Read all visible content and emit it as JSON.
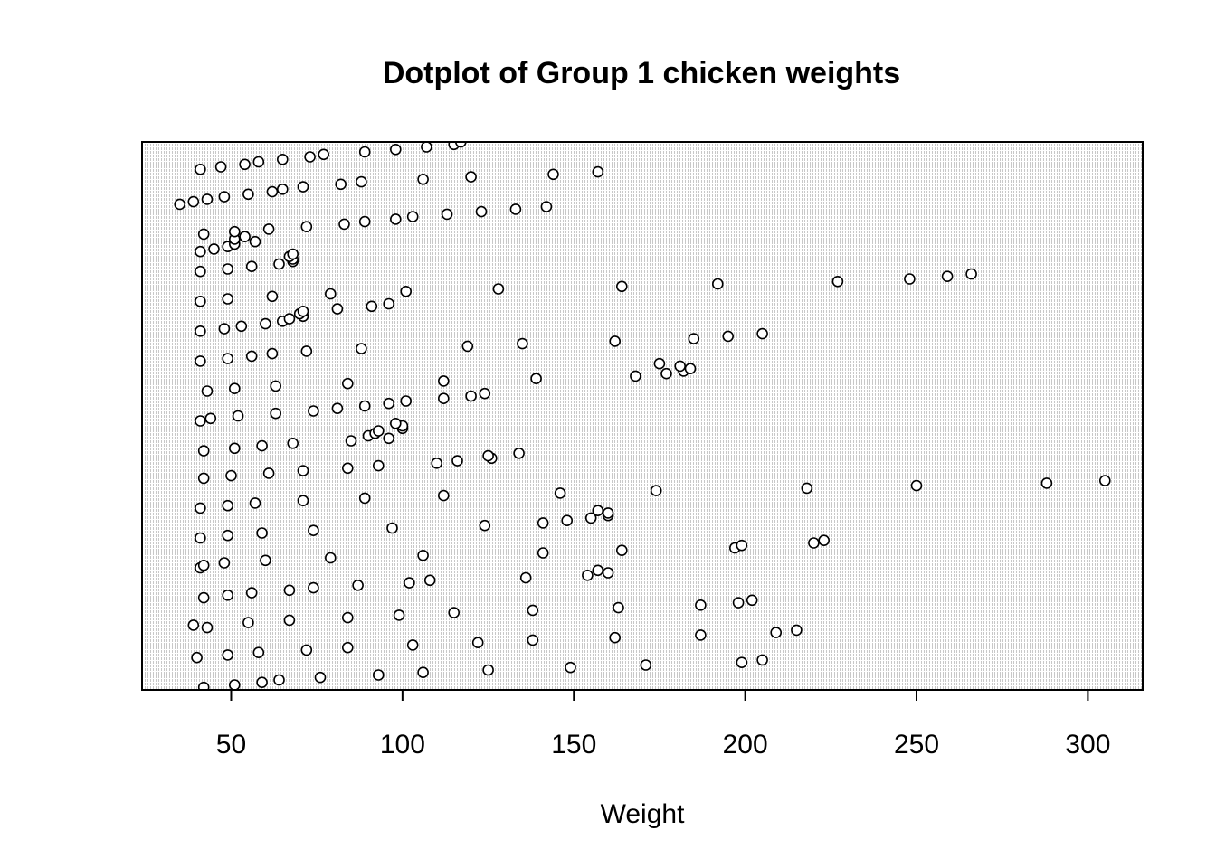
{
  "chart_data": {
    "type": "scatter",
    "title": "Dotplot of Group 1 chicken weights",
    "xlabel": "Weight",
    "ylabel": "",
    "xlim": [
      24,
      316
    ],
    "ylim": [
      0,
      220
    ],
    "x_ticks": [
      50,
      100,
      150,
      200,
      250,
      300
    ],
    "x_tick_labels": [
      "50",
      "100",
      "150",
      "200",
      "250",
      "300"
    ],
    "grid": false,
    "legend": "none",
    "colors": {
      "point_stroke": "#000000",
      "point_fill": "#ffffff",
      "panel_stripe": "#c8c8c8",
      "axis": "#000000"
    },
    "points": [
      [
        42,
        1
      ],
      [
        51,
        2
      ],
      [
        59,
        3
      ],
      [
        64,
        4
      ],
      [
        76,
        5
      ],
      [
        93,
        6
      ],
      [
        106,
        7
      ],
      [
        125,
        8
      ],
      [
        149,
        9
      ],
      [
        171,
        10
      ],
      [
        199,
        11
      ],
      [
        205,
        12
      ],
      [
        40,
        13
      ],
      [
        49,
        14
      ],
      [
        58,
        15
      ],
      [
        72,
        16
      ],
      [
        84,
        17
      ],
      [
        103,
        18
      ],
      [
        122,
        19
      ],
      [
        138,
        20
      ],
      [
        162,
        21
      ],
      [
        187,
        22
      ],
      [
        209,
        23
      ],
      [
        215,
        24
      ],
      [
        43,
        25
      ],
      [
        39,
        26
      ],
      [
        55,
        27
      ],
      [
        67,
        28
      ],
      [
        84,
        29
      ],
      [
        99,
        30
      ],
      [
        115,
        31
      ],
      [
        138,
        32
      ],
      [
        163,
        33
      ],
      [
        187,
        34
      ],
      [
        198,
        35
      ],
      [
        202,
        36
      ],
      [
        42,
        37
      ],
      [
        49,
        38
      ],
      [
        56,
        39
      ],
      [
        67,
        40
      ],
      [
        74,
        41
      ],
      [
        87,
        42
      ],
      [
        102,
        43
      ],
      [
        108,
        44
      ],
      [
        136,
        45
      ],
      [
        154,
        46
      ],
      [
        160,
        47
      ],
      [
        157,
        48
      ],
      [
        41,
        49
      ],
      [
        42,
        50
      ],
      [
        48,
        51
      ],
      [
        60,
        52
      ],
      [
        79,
        53
      ],
      [
        106,
        54
      ],
      [
        141,
        55
      ],
      [
        164,
        56
      ],
      [
        197,
        57
      ],
      [
        199,
        58
      ],
      [
        220,
        59
      ],
      [
        223,
        60
      ],
      [
        41,
        61
      ],
      [
        49,
        62
      ],
      [
        59,
        63
      ],
      [
        74,
        64
      ],
      [
        97,
        65
      ],
      [
        124,
        66
      ],
      [
        141,
        67
      ],
      [
        148,
        68
      ],
      [
        155,
        69
      ],
      [
        160,
        70
      ],
      [
        160,
        71
      ],
      [
        157,
        72
      ],
      [
        41,
        73
      ],
      [
        49,
        74
      ],
      [
        57,
        75
      ],
      [
        71,
        76
      ],
      [
        89,
        77
      ],
      [
        112,
        78
      ],
      [
        146,
        79
      ],
      [
        174,
        80
      ],
      [
        218,
        81
      ],
      [
        250,
        82
      ],
      [
        288,
        83
      ],
      [
        305,
        84
      ],
      [
        42,
        85
      ],
      [
        50,
        86
      ],
      [
        61,
        87
      ],
      [
        71,
        88
      ],
      [
        84,
        89
      ],
      [
        93,
        90
      ],
      [
        110,
        91
      ],
      [
        116,
        92
      ],
      [
        126,
        93
      ],
      [
        125,
        94
      ],
      [
        134,
        95
      ],
      [
        42,
        96
      ],
      [
        51,
        97
      ],
      [
        59,
        98
      ],
      [
        68,
        99
      ],
      [
        85,
        100
      ],
      [
        96,
        101
      ],
      [
        90,
        102
      ],
      [
        92,
        103
      ],
      [
        93,
        104
      ],
      [
        100,
        105
      ],
      [
        100,
        106
      ],
      [
        98,
        107
      ],
      [
        41,
        108
      ],
      [
        44,
        109
      ],
      [
        52,
        110
      ],
      [
        63,
        111
      ],
      [
        74,
        112
      ],
      [
        81,
        113
      ],
      [
        89,
        114
      ],
      [
        96,
        115
      ],
      [
        101,
        116
      ],
      [
        112,
        117
      ],
      [
        120,
        118
      ],
      [
        124,
        119
      ],
      [
        43,
        120
      ],
      [
        51,
        121
      ],
      [
        63,
        122
      ],
      [
        84,
        123
      ],
      [
        112,
        124
      ],
      [
        139,
        125
      ],
      [
        168,
        126
      ],
      [
        177,
        127
      ],
      [
        182,
        128
      ],
      [
        184,
        129
      ],
      [
        181,
        130
      ],
      [
        175,
        131
      ],
      [
        41,
        132
      ],
      [
        49,
        133
      ],
      [
        56,
        134
      ],
      [
        62,
        135
      ],
      [
        72,
        136
      ],
      [
        88,
        137
      ],
      [
        119,
        138
      ],
      [
        135,
        139
      ],
      [
        162,
        140
      ],
      [
        185,
        141
      ],
      [
        195,
        142
      ],
      [
        205,
        143
      ],
      [
        41,
        144
      ],
      [
        48,
        145
      ],
      [
        53,
        146
      ],
      [
        60,
        147
      ],
      [
        65,
        148
      ],
      [
        67,
        149
      ],
      [
        71,
        150
      ],
      [
        70,
        151
      ],
      [
        71,
        152
      ],
      [
        81,
        153
      ],
      [
        91,
        154
      ],
      [
        96,
        155
      ],
      [
        41,
        156
      ],
      [
        49,
        157
      ],
      [
        62,
        158
      ],
      [
        79,
        159
      ],
      [
        101,
        160
      ],
      [
        128,
        161
      ],
      [
        164,
        162
      ],
      [
        192,
        163
      ],
      [
        227,
        164
      ],
      [
        248,
        165
      ],
      [
        259,
        166
      ],
      [
        266,
        167
      ],
      [
        41,
        168
      ],
      [
        49,
        169
      ],
      [
        56,
        170
      ],
      [
        64,
        171
      ],
      [
        68,
        172
      ],
      [
        68,
        173
      ],
      [
        67,
        174
      ],
      [
        68,
        175
      ],
      [
        41,
        176
      ],
      [
        45,
        177
      ],
      [
        49,
        178
      ],
      [
        51,
        179
      ],
      [
        57,
        180
      ],
      [
        51,
        181
      ],
      [
        54,
        182
      ],
      [
        42,
        183
      ],
      [
        51,
        184
      ],
      [
        61,
        185
      ],
      [
        72,
        186
      ],
      [
        83,
        187
      ],
      [
        89,
        188
      ],
      [
        98,
        189
      ],
      [
        103,
        190
      ],
      [
        113,
        191
      ],
      [
        123,
        192
      ],
      [
        133,
        193
      ],
      [
        142,
        194
      ],
      [
        35,
        195
      ],
      [
        39,
        196
      ],
      [
        43,
        197
      ],
      [
        48,
        198
      ],
      [
        55,
        199
      ],
      [
        62,
        200
      ],
      [
        65,
        201
      ],
      [
        71,
        202
      ],
      [
        82,
        203
      ],
      [
        88,
        204
      ],
      [
        106,
        205
      ],
      [
        120,
        206
      ],
      [
        144,
        207
      ],
      [
        157,
        208
      ],
      [
        41,
        209
      ],
      [
        47,
        210
      ],
      [
        54,
        211
      ],
      [
        58,
        212
      ],
      [
        65,
        213
      ],
      [
        73,
        214
      ],
      [
        77,
        215
      ],
      [
        89,
        216
      ],
      [
        98,
        217
      ],
      [
        107,
        218
      ],
      [
        115,
        219
      ],
      [
        117,
        220
      ]
    ]
  }
}
